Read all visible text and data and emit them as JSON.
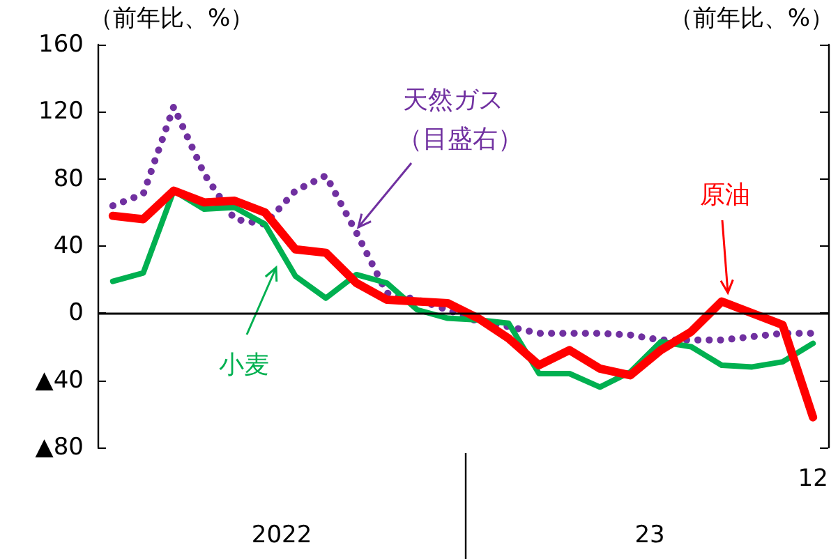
{
  "chart_data": {
    "type": "line",
    "ylabel": "（前年比、%）",
    "y2label": "（前年比、%）",
    "categories": [
      null,
      null,
      null,
      null,
      null,
      null,
      null,
      null,
      null,
      null,
      null,
      null,
      null,
      null,
      null,
      null,
      null,
      null,
      null,
      null,
      null,
      null,
      null,
      "12"
    ],
    "ylim": [
      -80,
      160
    ],
    "yticks": [
      {
        "value": -80,
        "label": "▲80"
      },
      {
        "value": -40,
        "label": "▲40"
      },
      0,
      40,
      80,
      120,
      160
    ],
    "series": [
      {
        "name": "天然ガス",
        "color": "#7030a0",
        "line_style": "dotted",
        "values": [
          64,
          71,
          123,
          83,
          56,
          53,
          73,
          82,
          48,
          12,
          8,
          2,
          -5,
          -8,
          -12,
          -12,
          -12,
          -13,
          -16,
          -16,
          -16,
          -14,
          -12,
          -12
        ]
      },
      {
        "name": "小麦",
        "color": "#00b050",
        "line_style": "solid",
        "values": [
          19,
          24,
          73,
          62,
          63,
          53,
          22,
          9,
          23,
          18,
          2,
          -3,
          -4,
          -6,
          -36,
          -36,
          -44,
          -35,
          -17,
          -20,
          -31,
          -32,
          -29,
          -18
        ]
      },
      {
        "name": "原油",
        "color": "#ff0000",
        "line_style": "solid",
        "values": [
          58,
          56,
          73,
          66,
          67,
          60,
          38,
          36,
          18,
          8,
          7,
          6,
          -3,
          -15,
          -31,
          -22,
          -33,
          -37,
          -22,
          -11,
          7,
          0,
          -7,
          -62
        ]
      }
    ],
    "ref_lines": [
      {
        "axis": "y",
        "value": 0,
        "color": "#000000"
      }
    ],
    "annotations": [
      "（目盛右）",
      "2022",
      "23"
    ],
    "grid": false,
    "legend": false,
    "marker": "none"
  }
}
